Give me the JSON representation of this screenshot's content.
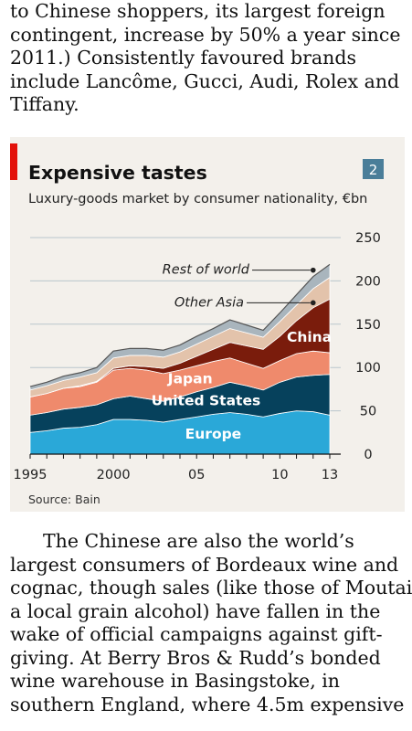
{
  "article": {
    "para_top_lines": [
      "to Chinese shoppers, its largest foreign",
      "contingent, increase by 50% a year since",
      "2011.) Consistently favoured brands",
      "include Lancôme, Gucci, Audi, Rolex and",
      "Tiffany."
    ],
    "para_bottom_lines": [
      "The Chinese are also the world’s",
      "largest consumers of Bordeaux wine and",
      "cognac, though sales (like those of Moutai,",
      "a local grain alcohol) have fallen in the",
      "wake of official campaigns against gift-",
      "giving. At Berry Bros & Rudd’s bonded",
      "wine warehouse in Basingstoke, in",
      "southern England, where 4.5m expensive"
    ]
  },
  "chart": {
    "number": "2",
    "title": "Expensive tastes",
    "subtitle": "Luxury-goods market by consumer nationality, €bn",
    "source": "Source: Bain",
    "colors": {
      "europe": "#2aa8d8",
      "united_states": "#06415c",
      "japan": "#ef8a6c",
      "china": "#7a1c0c",
      "other_asia": "#e3c3ab",
      "rest_of_world": "#a9b5bd",
      "accent_red": "#e3120b",
      "number_box": "#4a7e99",
      "panel": "#f3f0eb"
    }
  },
  "chart_data": {
    "type": "area",
    "stacked": true,
    "x": [
      1995,
      1996,
      1997,
      1998,
      1999,
      2000,
      2001,
      2002,
      2003,
      2004,
      2005,
      2006,
      2007,
      2008,
      2009,
      2010,
      2011,
      2012,
      2013
    ],
    "x_tick_labels": [
      "1995",
      "2000",
      "05",
      "10",
      "13"
    ],
    "x_tick_values": [
      1995,
      2000,
      2005,
      2010,
      2013
    ],
    "ylim": [
      0,
      250
    ],
    "y_ticks": [
      0,
      50,
      100,
      150,
      200,
      250
    ],
    "y_axis_side": "right",
    "grid": true,
    "series": [
      {
        "name": "Europe",
        "key": "europe",
        "values": [
          25,
          27,
          30,
          31,
          34,
          40,
          40,
          39,
          37,
          40,
          43,
          46,
          48,
          46,
          43,
          47,
          50,
          49,
          45
        ]
      },
      {
        "name": "United States",
        "key": "united_states",
        "values": [
          20,
          21,
          22,
          23,
          23,
          24,
          27,
          25,
          24,
          26,
          29,
          31,
          35,
          33,
          31,
          36,
          39,
          42,
          47
        ]
      },
      {
        "name": "Japan",
        "key": "japan",
        "values": [
          21,
          22,
          24,
          24,
          26,
          33,
          32,
          33,
          32,
          31,
          30,
          30,
          28,
          26,
          25,
          25,
          27,
          28,
          25
        ]
      },
      {
        "name": "China",
        "key": "china",
        "values": [
          0,
          0,
          0,
          1,
          1,
          2,
          3,
          4,
          6,
          8,
          11,
          14,
          18,
          20,
          22,
          28,
          38,
          50,
          62
        ]
      },
      {
        "name": "Other Asia",
        "key": "other_asia",
        "values": [
          8,
          9,
          9,
          10,
          10,
          12,
          12,
          13,
          13,
          13,
          14,
          15,
          16,
          15,
          14,
          17,
          18,
          22,
          25
        ]
      },
      {
        "name": "Rest of world",
        "key": "rest_of_world",
        "values": [
          4,
          4,
          5,
          5,
          6,
          8,
          8,
          8,
          8,
          8,
          9,
          9,
          10,
          9,
          8,
          10,
          12,
          14,
          15
        ]
      }
    ],
    "inline_labels": [
      "Europe",
      "United States",
      "Japan",
      "China"
    ],
    "callout_labels": [
      "Rest of world",
      "Other Asia"
    ],
    "title": "Expensive tastes",
    "subtitle": "Luxury-goods market by consumer nationality, €bn",
    "source": "Source: Bain"
  }
}
